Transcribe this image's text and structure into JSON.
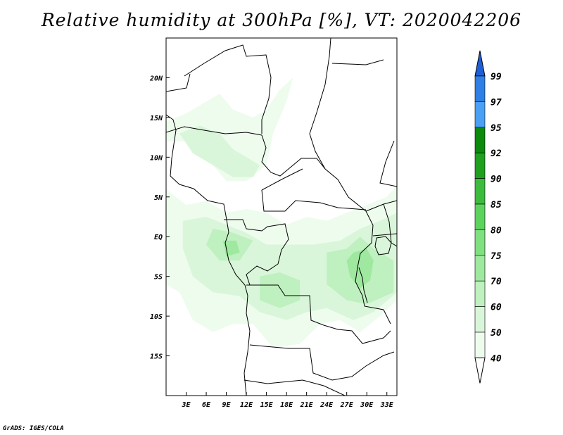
{
  "title": "Relative humidity at 300hPa [%], VT: 2020042206",
  "credit": "GrADS: IGES/COLA",
  "map": {
    "lon_range": [
      0,
      34.5
    ],
    "lat_range": [
      -20,
      25
    ],
    "x_ticks": [
      {
        "value": 3,
        "label": "3E"
      },
      {
        "value": 6,
        "label": "6E"
      },
      {
        "value": 9,
        "label": "9E"
      },
      {
        "value": 12,
        "label": "12E"
      },
      {
        "value": 15,
        "label": "15E"
      },
      {
        "value": 18,
        "label": "18E"
      },
      {
        "value": 21,
        "label": "21E"
      },
      {
        "value": 24,
        "label": "24E"
      },
      {
        "value": 27,
        "label": "27E"
      },
      {
        "value": 30,
        "label": "30E"
      },
      {
        "value": 33,
        "label": "33E"
      }
    ],
    "y_ticks": [
      {
        "value": 20,
        "label": "20N"
      },
      {
        "value": 15,
        "label": "15N"
      },
      {
        "value": 10,
        "label": "10N"
      },
      {
        "value": 5,
        "label": "5N"
      },
      {
        "value": 0,
        "label": "EQ"
      },
      {
        "value": -5,
        "label": "5S"
      },
      {
        "value": -10,
        "label": "10S"
      },
      {
        "value": -15,
        "label": "15S"
      }
    ],
    "humidity_regions": [
      {
        "level": 40,
        "points": [
          [
            0,
            14.5
          ],
          [
            3,
            15.5
          ],
          [
            6,
            17
          ],
          [
            8,
            18
          ],
          [
            10,
            16
          ],
          [
            13,
            15
          ],
          [
            15,
            16
          ],
          [
            17,
            18.5
          ],
          [
            19,
            20
          ],
          [
            18,
            17
          ],
          [
            16,
            13
          ],
          [
            15,
            9
          ],
          [
            12,
            7
          ],
          [
            9,
            7
          ],
          [
            7,
            9
          ],
          [
            5,
            12
          ],
          [
            3,
            12
          ],
          [
            0,
            12
          ]
        ]
      },
      {
        "level": 40,
        "points": [
          [
            0,
            6
          ],
          [
            3,
            4
          ],
          [
            6,
            4.5
          ],
          [
            9,
            3
          ],
          [
            12,
            3.5
          ],
          [
            15,
            3
          ],
          [
            18,
            1.5
          ],
          [
            21,
            2.5
          ],
          [
            24,
            2
          ],
          [
            27,
            3
          ],
          [
            30,
            4
          ],
          [
            33,
            5
          ],
          [
            34.5,
            6.5
          ],
          [
            34.5,
            -8
          ],
          [
            32,
            -10
          ],
          [
            29,
            -12
          ],
          [
            26,
            -10.5
          ],
          [
            23,
            -11
          ],
          [
            20,
            -13.5
          ],
          [
            16,
            -14
          ],
          [
            13,
            -11
          ],
          [
            10,
            -11
          ],
          [
            7,
            -12
          ],
          [
            4,
            -10.5
          ],
          [
            2,
            -7
          ],
          [
            0,
            -6
          ]
        ]
      },
      {
        "level": 50,
        "points": [
          [
            2.5,
            2
          ],
          [
            6,
            2.5
          ],
          [
            9,
            1.5
          ],
          [
            12,
            0.5
          ],
          [
            15,
            -1
          ],
          [
            19,
            -1
          ],
          [
            22,
            -1
          ],
          [
            26,
            -0.5
          ],
          [
            29,
            1
          ],
          [
            32,
            2
          ],
          [
            34.5,
            3
          ],
          [
            34.5,
            -7
          ],
          [
            31,
            -9.5
          ],
          [
            28,
            -10.5
          ],
          [
            24,
            -9
          ],
          [
            21,
            -9.5
          ],
          [
            18,
            -10.5
          ],
          [
            14,
            -9.5
          ],
          [
            11,
            -7.5
          ],
          [
            7,
            -7
          ],
          [
            4,
            -5
          ],
          [
            2.5,
            -1.5
          ]
        ]
      },
      {
        "level": 50,
        "points": [
          [
            2,
            13
          ],
          [
            5,
            14
          ],
          [
            8,
            13
          ],
          [
            10,
            11
          ],
          [
            12,
            10
          ],
          [
            14,
            9
          ],
          [
            13,
            7.5
          ],
          [
            10,
            7.5
          ],
          [
            7,
            9
          ],
          [
            4,
            10.5
          ]
        ]
      },
      {
        "level": 60,
        "points": [
          [
            7,
            1
          ],
          [
            10,
            0.5
          ],
          [
            13,
            -0.5
          ],
          [
            11,
            -3
          ],
          [
            8,
            -3
          ],
          [
            6,
            -1
          ]
        ]
      },
      {
        "level": 60,
        "points": [
          [
            24,
            -2
          ],
          [
            27,
            -1.5
          ],
          [
            29,
            0
          ],
          [
            31,
            -1.5
          ],
          [
            34,
            -3
          ],
          [
            34,
            -7
          ],
          [
            30,
            -8.5
          ],
          [
            27,
            -8
          ],
          [
            24,
            -6
          ]
        ]
      },
      {
        "level": 60,
        "points": [
          [
            14,
            -5
          ],
          [
            17,
            -4.5
          ],
          [
            20,
            -5.5
          ],
          [
            20,
            -8
          ],
          [
            17,
            -9
          ],
          [
            14,
            -8
          ]
        ]
      },
      {
        "level": 70,
        "points": [
          [
            28,
            -2
          ],
          [
            30,
            -1.5
          ],
          [
            31,
            -3
          ],
          [
            30.5,
            -5.5
          ],
          [
            29,
            -6.5
          ],
          [
            27.5,
            -5
          ],
          [
            27,
            -3
          ]
        ]
      },
      {
        "level": 70,
        "points": [
          [
            8.5,
            -0.5
          ],
          [
            10.5,
            -0.5
          ],
          [
            11,
            -2
          ],
          [
            9,
            -2.5
          ]
        ]
      }
    ],
    "colorbar": {
      "levels": [
        99,
        97,
        95,
        92,
        90,
        85,
        80,
        75,
        70,
        60,
        50,
        40
      ],
      "colors": [
        "#1f5fd6",
        "#2e7fe6",
        "#4aa0f5",
        "#0c8a0c",
        "#1fa01f",
        "#3cbc3c",
        "#5cd45c",
        "#7fe07f",
        "#9fe89f",
        "#bff0bf",
        "#daf6da",
        "#eefcee"
      ]
    }
  }
}
